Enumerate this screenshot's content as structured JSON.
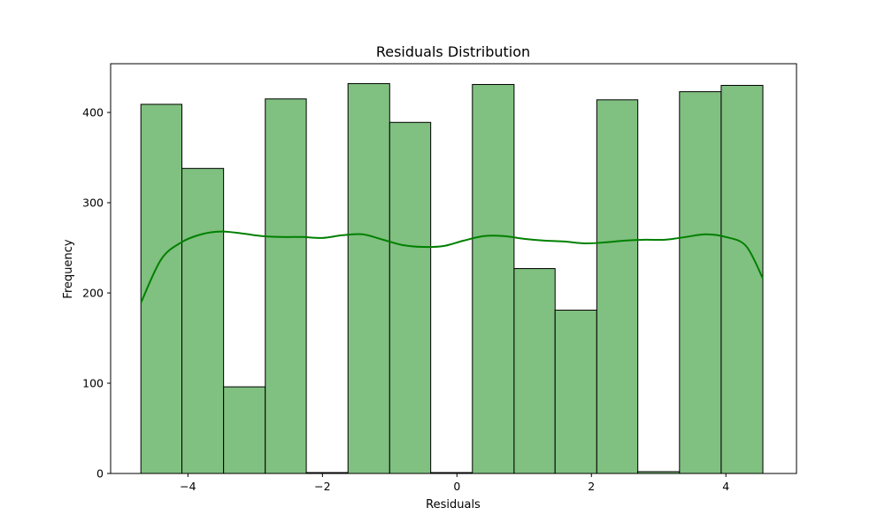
{
  "chart_data": {
    "type": "bar",
    "title": "Residuals Distribution",
    "xlabel": "Residuals",
    "ylabel": "Frequency",
    "xlim": [
      -5.15,
      5.05
    ],
    "ylim": [
      0,
      454
    ],
    "grid": false,
    "bar_fill": "#80c080",
    "bar_edge": "#000000",
    "kde_color": "#008000",
    "x_ticks": [
      {
        "value": -4,
        "label": "−4"
      },
      {
        "value": -2,
        "label": "−2"
      },
      {
        "value": 0,
        "label": "0"
      },
      {
        "value": 2,
        "label": "2"
      },
      {
        "value": 4,
        "label": "4"
      }
    ],
    "y_ticks": [
      {
        "value": 0,
        "label": "0"
      },
      {
        "value": 100,
        "label": "100"
      },
      {
        "value": 200,
        "label": "200"
      },
      {
        "value": 300,
        "label": "300"
      },
      {
        "value": 400,
        "label": "400"
      }
    ],
    "bins": [
      {
        "x0": -4.7,
        "x1": -4.09,
        "count": 409
      },
      {
        "x0": -4.09,
        "x1": -3.47,
        "count": 338
      },
      {
        "x0": -3.47,
        "x1": -2.85,
        "count": 96
      },
      {
        "x0": -2.85,
        "x1": -2.24,
        "count": 415
      },
      {
        "x0": -2.24,
        "x1": -1.62,
        "count": 1
      },
      {
        "x0": -1.62,
        "x1": -1.0,
        "count": 432
      },
      {
        "x0": -1.0,
        "x1": -0.39,
        "count": 389
      },
      {
        "x0": -0.39,
        "x1": 0.23,
        "count": 1
      },
      {
        "x0": 0.23,
        "x1": 0.85,
        "count": 431
      },
      {
        "x0": 0.85,
        "x1": 1.46,
        "count": 227
      },
      {
        "x0": 1.46,
        "x1": 2.08,
        "count": 181
      },
      {
        "x0": 2.08,
        "x1": 2.69,
        "count": 414
      },
      {
        "x0": 2.69,
        "x1": 3.31,
        "count": 2
      },
      {
        "x0": 3.31,
        "x1": 3.93,
        "count": 423
      },
      {
        "x0": 3.93,
        "x1": 4.55,
        "count": 430
      }
    ],
    "kde": {
      "x": [
        -4.7,
        -4.4,
        -4.1,
        -3.8,
        -3.5,
        -3.2,
        -2.9,
        -2.6,
        -2.3,
        -2.0,
        -1.7,
        -1.4,
        -1.1,
        -0.8,
        -0.5,
        -0.2,
        0.1,
        0.4,
        0.7,
        1.0,
        1.3,
        1.6,
        1.9,
        2.2,
        2.5,
        2.8,
        3.1,
        3.4,
        3.7,
        4.0,
        4.3,
        4.55
      ],
      "y": [
        189,
        237,
        256,
        265,
        268,
        266,
        263,
        262,
        262,
        261,
        264,
        265,
        259,
        253,
        251,
        252,
        258,
        263,
        263,
        260,
        258,
        257,
        255,
        256,
        258,
        259,
        259,
        262,
        265,
        262,
        252,
        216
      ]
    }
  }
}
